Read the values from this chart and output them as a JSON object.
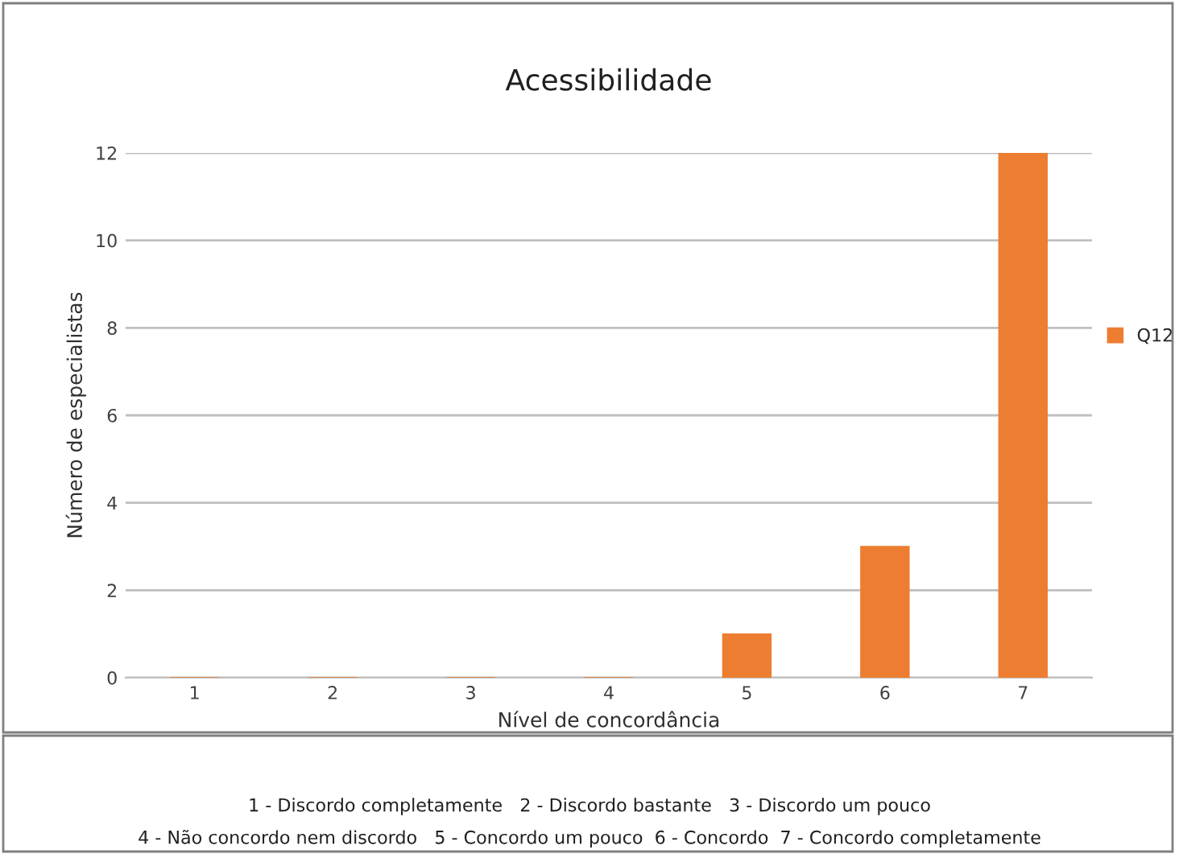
{
  "chart_data": {
    "type": "bar",
    "title": "Acessibilidade",
    "xlabel": "Nível de concordância",
    "ylabel": "Número de especialistas",
    "categories": [
      "1",
      "2",
      "3",
      "4",
      "5",
      "6",
      "7"
    ],
    "series": [
      {
        "name": "Q12",
        "color": "#ed7d31",
        "values": [
          0,
          0,
          0,
          0,
          1,
          3,
          12
        ]
      }
    ],
    "ylim": [
      0,
      12
    ],
    "yticks": [
      0,
      2,
      4,
      6,
      8,
      10,
      12
    ],
    "grid": "y",
    "legend": "right",
    "annotations": [
      "1 - Discordo completamente   2 - Discordo bastante   3 - Discordo um pouco",
      "4 - Não concordo nem discordo   5 - Concordo um pouco  6 - Concordo  7 - Concordo completamente"
    ]
  }
}
